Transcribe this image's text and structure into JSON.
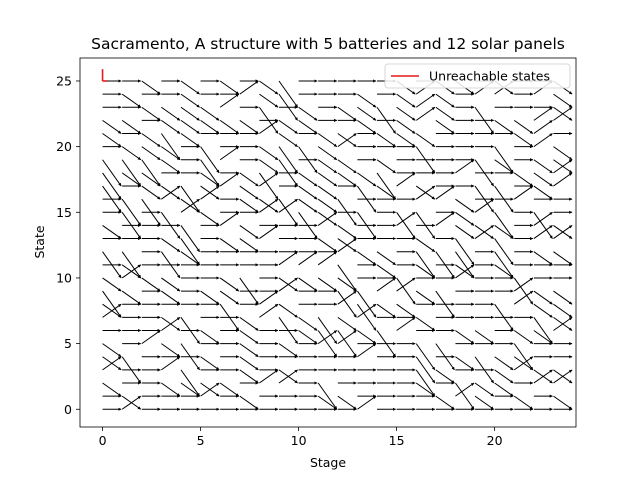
{
  "chart_data": {
    "type": "quiver",
    "title": "Sacramento, A structure with 5 batteries and 12 solar panels",
    "xlabel": "Stage",
    "ylabel": "State",
    "xlim": [
      -1.15,
      24.15
    ],
    "ylim": [
      -1.35,
      26.75
    ],
    "xticks": [
      0,
      5,
      10,
      15,
      20
    ],
    "yticks": [
      0,
      5,
      10,
      15,
      20,
      25
    ],
    "grid": false,
    "legend": {
      "placement": "top-right",
      "entries": [
        {
          "label": "Unreachable states",
          "color": "#e41a1c"
        }
      ]
    },
    "arrow_color": "#000000",
    "unreachable_color": "#e41a1c",
    "stages": [
      0,
      24
    ],
    "states": [
      0,
      25
    ],
    "unreachable": [
      {
        "x": [
          0,
          0
        ],
        "y": [
          25,
          25.9
        ]
      },
      {
        "x": [
          0,
          0.25
        ],
        "y": [
          25,
          25
        ]
      }
    ],
    "sample_flows": [
      {
        "stage": 0,
        "state": 0,
        "next_state": 0
      },
      {
        "stage": 0,
        "state": 25,
        "next_state": 25
      },
      {
        "stage": 1,
        "state": 25,
        "next_state": 25
      },
      {
        "stage": 1,
        "state": 24,
        "next_state": 24
      },
      {
        "stage": 5,
        "state": 10,
        "next_state": 9
      },
      {
        "stage": 10,
        "state": 15,
        "next_state": 15
      },
      {
        "stage": 20,
        "state": 0,
        "next_state": 0
      },
      {
        "stage": 23,
        "state": 0,
        "next_state": 0
      }
    ]
  }
}
